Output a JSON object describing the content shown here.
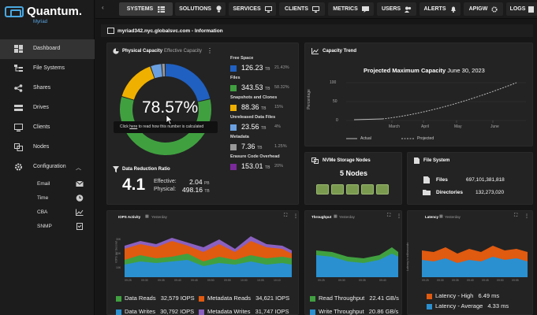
{
  "app": {
    "brand": "Quantum.",
    "product": "Myriad"
  },
  "sidebar": {
    "items": [
      {
        "label": "Dashboard",
        "icon": "dashboard-icon"
      },
      {
        "label": "File Systems",
        "icon": "file-tree-icon"
      },
      {
        "label": "Shares",
        "icon": "share-icon"
      },
      {
        "label": "Drives",
        "icon": "drive-icon"
      },
      {
        "label": "Clients",
        "icon": "clients-icon"
      },
      {
        "label": "Nodes",
        "icon": "nodes-icon"
      },
      {
        "label": "Configuration",
        "icon": "gear-icon"
      }
    ],
    "config_items": [
      {
        "label": "Email",
        "icon": "mail-icon"
      },
      {
        "label": "Time",
        "icon": "clock-icon"
      },
      {
        "label": "CBA",
        "icon": "chart-icon"
      },
      {
        "label": "SNMP",
        "icon": "clipboard-icon"
      }
    ]
  },
  "topbar": {
    "tabs": [
      "SYSTEMS",
      "SOLUTIONS",
      "SERVICES",
      "CLIENTS",
      "METRICS",
      "USERS",
      "ALERTS",
      "APIGW",
      "LOGS"
    ]
  },
  "page": {
    "title": "myriad342.nyc.globalsvc.com - Information"
  },
  "capacity": {
    "title": "Physical Capacity",
    "subtitle": "Effective Capacity",
    "percent": "78.57%",
    "tooltip_pre": "Click ",
    "tooltip_link": "here",
    "tooltip_post": " to read how this number is calculated",
    "stats": [
      {
        "label": "Free Space",
        "value": "126.23",
        "unit": "TB",
        "pct": "21.43%",
        "color": "#2060c0"
      },
      {
        "label": "Files",
        "value": "343.53",
        "unit": "TB",
        "pct": "58.32%",
        "color": "#40a040"
      },
      {
        "label": "Snapshots and Clones",
        "value": "88.36",
        "unit": "TB",
        "pct": "15%",
        "color": "#f0b000"
      },
      {
        "label": "Unreleased Data Files",
        "value": "23.56",
        "unit": "TB",
        "pct": "4%",
        "color": "#6aa0e0"
      },
      {
        "label": "Metadata",
        "value": "7.36",
        "unit": "TB",
        "pct": "1.25%",
        "color": "#999999"
      },
      {
        "label": "Erasure Code Overhead",
        "value": "153.01",
        "unit": "TB",
        "pct": "20%",
        "color": "#7a2a9a"
      }
    ],
    "donut": [
      21.43,
      58.32,
      15,
      4,
      1.25
    ]
  },
  "reduction": {
    "title": "Data Reduction Ratio",
    "ratio": "4.1",
    "effective_label": "Effective:",
    "effective_value": "2.04",
    "effective_unit": "PB",
    "physical_label": "Physical:",
    "physical_value": "498.16",
    "physical_unit": "TB"
  },
  "trend": {
    "title": "Capacity Trend",
    "chart_title": "Projected Maximum Capacity",
    "chart_date": "June 30, 2023",
    "ylabel": "Percentage",
    "yticks": [
      "100",
      "50",
      "0"
    ],
    "xticks": [
      "March",
      "April",
      "May",
      "June"
    ],
    "legend_actual": "Actual",
    "legend_projected": "Projected"
  },
  "nvme": {
    "title": "NVMe Storage Nodes",
    "count": "5 Nodes",
    "nodes": 5
  },
  "filesystem": {
    "title": "File System",
    "files_label": "Files",
    "files_value": "697,101,381,818",
    "dirs_label": "Directories",
    "dirs_value": "132,273,020"
  },
  "iops": {
    "title": "IOPS Activity",
    "range": "Yesterday",
    "yticks": [
      "30K",
      "20K",
      "10K"
    ],
    "xticks": [
      "09:25",
      "09:30",
      "09:35",
      "09:40",
      "09:45",
      "09:50",
      "09:55",
      "10:00",
      "10:05",
      "10:10"
    ],
    "legend": [
      {
        "label": "Data Reads",
        "value": "32,579 IOPS",
        "color": "#40a040"
      },
      {
        "label": "Metadata Reads",
        "value": "34,621 IOPS",
        "color": "#e05a10"
      },
      {
        "label": "Data Writes",
        "value": "30,792 IOPS",
        "color": "#2a90d0"
      },
      {
        "label": "Metadata Writes",
        "value": "31,747 IOPS",
        "color": "#8a60c0"
      }
    ]
  },
  "throughput": {
    "title": "Throughput",
    "range": "Yesterday",
    "xticks": [
      "09:25",
      "09:30",
      "09:35",
      "09:40"
    ],
    "legend": [
      {
        "label": "Read Throughput",
        "value": "22.41 GB/s",
        "color": "#40a040"
      },
      {
        "label": "Write Throughput",
        "value": "20.86 GB/s",
        "color": "#2a90d0"
      }
    ]
  },
  "latency": {
    "title": "Latency",
    "range": "Yesterday",
    "ylabel": "Latency in milliseconds",
    "xticks": [
      "09:25",
      "09:30",
      "09:35",
      "09:40",
      "09:45",
      "09:50",
      "09:55"
    ],
    "legend": [
      {
        "label": "Latency - High",
        "value": "6.49 ms",
        "color": "#e05a10"
      },
      {
        "label": "Latency - Average",
        "value": "4.33 ms",
        "color": "#2a90d0"
      }
    ]
  },
  "colors": {
    "accent": "#4aa8e0",
    "panel": "#232323",
    "bg": "#161616"
  }
}
